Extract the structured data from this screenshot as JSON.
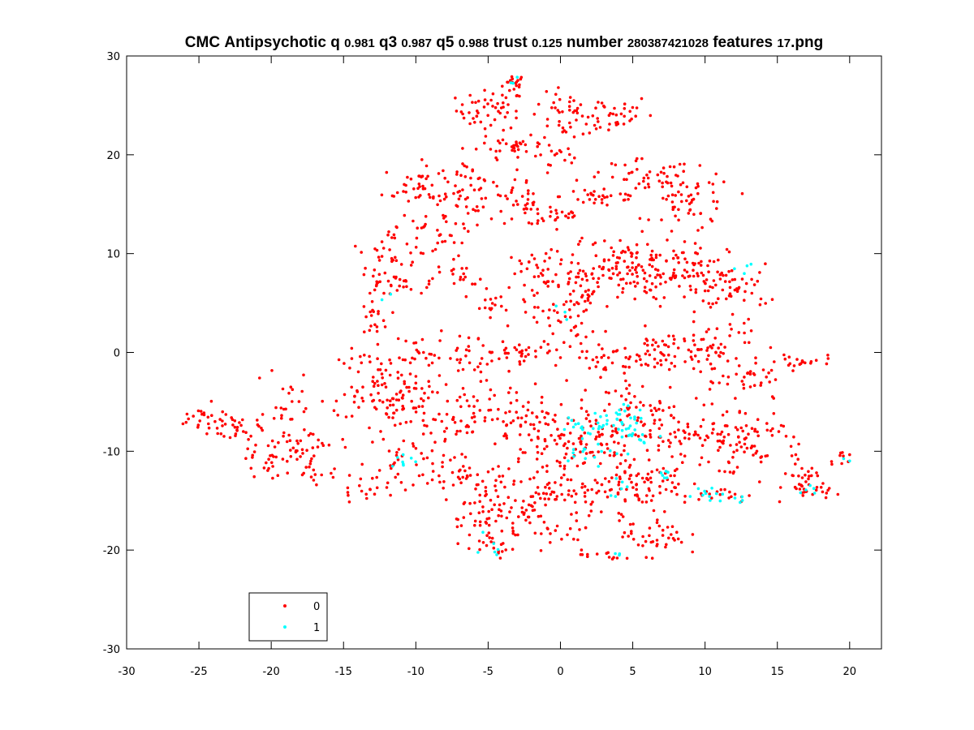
{
  "chart_data": {
    "type": "scatter",
    "title_parts": [
      {
        "text": "CMC Antipsychotic q ",
        "small": false
      },
      {
        "text": "0.981",
        "small": true
      },
      {
        "text": " q3 ",
        "small": false
      },
      {
        "text": "0.987",
        "small": true
      },
      {
        "text": " q5 ",
        "small": false
      },
      {
        "text": "0.988",
        "small": true
      },
      {
        "text": " trust ",
        "small": false
      },
      {
        "text": "0.125",
        "small": true
      },
      {
        "text": " number ",
        "small": false
      },
      {
        "text": "280387421028",
        "small": true
      },
      {
        "text": " features ",
        "small": false
      },
      {
        "text": "17",
        "small": true
      },
      {
        "text": ".png",
        "small": false
      }
    ],
    "xlim": [
      -30,
      22.2
    ],
    "ylim": [
      -30,
      30
    ],
    "x_ticks": [
      -30,
      -25,
      -20,
      -15,
      -10,
      -5,
      0,
      5,
      10,
      15,
      20
    ],
    "y_ticks": [
      -30,
      -20,
      -10,
      0,
      10,
      20,
      30
    ],
    "x_tick_labels": [
      "-30",
      "-25",
      "-20",
      "-15",
      "-10",
      "-5",
      "0",
      "5",
      "10",
      "15",
      "20"
    ],
    "y_tick_labels": [
      "-30",
      "-20",
      "-10",
      "0",
      "10",
      "20",
      "30"
    ],
    "grid": false,
    "legend_position": "bottom-left",
    "series": [
      {
        "name": "0",
        "color": "#ff0000",
        "clusters": [
          {
            "cx": -3.2,
            "cy": 27.2,
            "sx": 0.4,
            "sy": 0.5,
            "n": 18
          },
          {
            "cx": -4.8,
            "cy": 24.5,
            "sx": 1.2,
            "sy": 1.0,
            "n": 50
          },
          {
            "cx": 0.8,
            "cy": 23.8,
            "sx": 1.5,
            "sy": 1.2,
            "n": 45
          },
          {
            "cx": 3.2,
            "cy": 24.2,
            "sx": 1.6,
            "sy": 1.0,
            "n": 30
          },
          {
            "cx": -3.0,
            "cy": 21.0,
            "sx": 1.3,
            "sy": 0.5,
            "n": 30
          },
          {
            "cx": -0.5,
            "cy": 19.5,
            "sx": 1.8,
            "sy": 1.0,
            "n": 25
          },
          {
            "cx": -9.5,
            "cy": 16.8,
            "sx": 1.4,
            "sy": 1.2,
            "n": 45
          },
          {
            "cx": -5.8,
            "cy": 16.2,
            "sx": 1.5,
            "sy": 1.5,
            "n": 55
          },
          {
            "cx": -2.5,
            "cy": 14.5,
            "sx": 1.0,
            "sy": 0.8,
            "n": 30
          },
          {
            "cx": 0.0,
            "cy": 13.8,
            "sx": 0.8,
            "sy": 0.4,
            "n": 18
          },
          {
            "cx": 3.0,
            "cy": 15.8,
            "sx": 1.5,
            "sy": 0.6,
            "n": 30
          },
          {
            "cx": 6.0,
            "cy": 17.5,
            "sx": 1.6,
            "sy": 1.0,
            "n": 40
          },
          {
            "cx": 9.2,
            "cy": 15.0,
            "sx": 1.4,
            "sy": 1.6,
            "n": 55
          },
          {
            "cx": -11.5,
            "cy": 11.0,
            "sx": 1.2,
            "sy": 1.2,
            "n": 30
          },
          {
            "cx": -8.5,
            "cy": 11.8,
            "sx": 1.3,
            "sy": 1.3,
            "n": 30
          },
          {
            "cx": -12.0,
            "cy": 7.0,
            "sx": 1.0,
            "sy": 0.6,
            "n": 30
          },
          {
            "cx": -13.0,
            "cy": 3.5,
            "sx": 0.6,
            "sy": 1.2,
            "n": 20
          },
          {
            "cx": -7.0,
            "cy": 7.2,
            "sx": 1.0,
            "sy": 0.8,
            "n": 18
          },
          {
            "cx": -4.5,
            "cy": 4.5,
            "sx": 1.2,
            "sy": 1.0,
            "n": 18
          },
          {
            "cx": -1.5,
            "cy": 8.0,
            "sx": 1.2,
            "sy": 1.5,
            "n": 30
          },
          {
            "cx": 1.5,
            "cy": 7.5,
            "sx": 1.6,
            "sy": 2.0,
            "n": 70
          },
          {
            "cx": 4.5,
            "cy": 8.5,
            "sx": 1.8,
            "sy": 1.6,
            "n": 90
          },
          {
            "cx": 7.5,
            "cy": 8.0,
            "sx": 1.3,
            "sy": 1.5,
            "n": 50
          },
          {
            "cx": 10.5,
            "cy": 7.5,
            "sx": 1.2,
            "sy": 1.6,
            "n": 45
          },
          {
            "cx": 12.5,
            "cy": 6.5,
            "sx": 1.0,
            "sy": 1.2,
            "n": 30
          },
          {
            "cx": 0.5,
            "cy": 3.0,
            "sx": 1.2,
            "sy": 1.3,
            "n": 30
          },
          {
            "cx": -3.0,
            "cy": 0.0,
            "sx": 1.4,
            "sy": 0.5,
            "n": 30
          },
          {
            "cx": -6.0,
            "cy": -0.5,
            "sx": 1.4,
            "sy": 1.2,
            "n": 35
          },
          {
            "cx": -9.5,
            "cy": -0.5,
            "sx": 1.0,
            "sy": 1.2,
            "n": 25
          },
          {
            "cx": -12.5,
            "cy": -2.5,
            "sx": 1.4,
            "sy": 1.4,
            "n": 45
          },
          {
            "cx": -10.5,
            "cy": -4.5,
            "sx": 1.2,
            "sy": 1.0,
            "n": 30
          },
          {
            "cx": 3.5,
            "cy": -1.0,
            "sx": 1.6,
            "sy": 1.3,
            "n": 45
          },
          {
            "cx": 7.5,
            "cy": 0.0,
            "sx": 1.5,
            "sy": 1.2,
            "n": 55
          },
          {
            "cx": 11.0,
            "cy": 0.5,
            "sx": 1.5,
            "sy": 1.5,
            "n": 45
          },
          {
            "cx": 13.5,
            "cy": -3.0,
            "sx": 1.2,
            "sy": 1.2,
            "n": 30
          },
          {
            "cx": 16.5,
            "cy": -1.0,
            "sx": 1.2,
            "sy": 0.4,
            "n": 20
          },
          {
            "cx": -24.5,
            "cy": -7.0,
            "sx": 1.2,
            "sy": 0.8,
            "n": 25
          },
          {
            "cx": -22.5,
            "cy": -7.5,
            "sx": 0.8,
            "sy": 0.8,
            "n": 25
          },
          {
            "cx": -20.0,
            "cy": -10.5,
            "sx": 1.3,
            "sy": 1.0,
            "n": 40
          },
          {
            "cx": -19.0,
            "cy": -4.5,
            "sx": 0.6,
            "sy": 1.5,
            "n": 18
          },
          {
            "cx": -17.5,
            "cy": -8.5,
            "sx": 1.0,
            "sy": 1.8,
            "n": 30
          },
          {
            "cx": -17.0,
            "cy": -12.5,
            "sx": 1.0,
            "sy": 0.6,
            "n": 12
          },
          {
            "cx": -12.0,
            "cy": -6.5,
            "sx": 1.2,
            "sy": 1.5,
            "n": 30
          },
          {
            "cx": -8.0,
            "cy": -7.0,
            "sx": 1.5,
            "sy": 1.2,
            "n": 35
          },
          {
            "cx": -11.0,
            "cy": -12.0,
            "sx": 1.5,
            "sy": 1.5,
            "n": 40
          },
          {
            "cx": -7.5,
            "cy": -12.0,
            "sx": 1.2,
            "sy": 1.0,
            "n": 20
          },
          {
            "cx": -3.5,
            "cy": -6.0,
            "sx": 1.8,
            "sy": 1.5,
            "n": 60
          },
          {
            "cx": -0.5,
            "cy": -9.5,
            "sx": 1.3,
            "sy": 2.0,
            "n": 50
          },
          {
            "cx": 2.5,
            "cy": -9.0,
            "sx": 2.0,
            "sy": 2.0,
            "n": 80
          },
          {
            "cx": 5.5,
            "cy": -6.0,
            "sx": 1.5,
            "sy": 1.5,
            "n": 45
          },
          {
            "cx": 8.5,
            "cy": -8.0,
            "sx": 1.8,
            "sy": 1.8,
            "n": 60
          },
          {
            "cx": 11.5,
            "cy": -9.0,
            "sx": 1.5,
            "sy": 2.0,
            "n": 50
          },
          {
            "cx": 13.5,
            "cy": -8.5,
            "sx": 1.0,
            "sy": 1.5,
            "n": 30
          },
          {
            "cx": 16.0,
            "cy": -11.5,
            "sx": 0.8,
            "sy": 1.2,
            "n": 15
          },
          {
            "cx": 17.5,
            "cy": -13.5,
            "sx": 0.8,
            "sy": 0.8,
            "n": 35
          },
          {
            "cx": 19.5,
            "cy": -10.5,
            "sx": 0.4,
            "sy": 0.5,
            "n": 8
          },
          {
            "cx": 11.0,
            "cy": -14.5,
            "sx": 1.2,
            "sy": 0.4,
            "n": 20
          },
          {
            "cx": -5.5,
            "cy": -15.5,
            "sx": 1.6,
            "sy": 1.8,
            "n": 70
          },
          {
            "cx": -2.0,
            "cy": -14.5,
            "sx": 1.5,
            "sy": 1.5,
            "n": 45
          },
          {
            "cx": 1.5,
            "cy": -14.5,
            "sx": 1.5,
            "sy": 1.5,
            "n": 40
          },
          {
            "cx": 4.5,
            "cy": -13.5,
            "sx": 1.4,
            "sy": 1.2,
            "n": 40
          },
          {
            "cx": 7.0,
            "cy": -13.0,
            "sx": 1.3,
            "sy": 1.0,
            "n": 25
          },
          {
            "cx": -5.0,
            "cy": -19.0,
            "sx": 1.2,
            "sy": 1.0,
            "n": 25
          },
          {
            "cx": -0.5,
            "cy": -19.0,
            "sx": 1.5,
            "sy": 1.0,
            "n": 20
          },
          {
            "cx": 3.5,
            "cy": -20.5,
            "sx": 1.2,
            "sy": 0.4,
            "n": 12
          },
          {
            "cx": 6.5,
            "cy": -18.5,
            "sx": 1.1,
            "sy": 1.0,
            "n": 40
          },
          {
            "cx": -13.5,
            "cy": -14.0,
            "sx": 0.8,
            "sy": 1.0,
            "n": 12
          },
          {
            "cx": -14.0,
            "cy": -4.0,
            "sx": 0.7,
            "sy": 1.2,
            "n": 12
          }
        ]
      },
      {
        "name": "1",
        "color": "#00ffff",
        "clusters": [
          {
            "cx": 4.5,
            "cy": -7.0,
            "sx": 0.7,
            "sy": 0.8,
            "n": 30
          },
          {
            "cx": 1.8,
            "cy": -7.5,
            "sx": 0.9,
            "sy": 0.6,
            "n": 20
          },
          {
            "cx": 2.5,
            "cy": -10.0,
            "sx": 1.3,
            "sy": 0.5,
            "n": 15
          },
          {
            "cx": 5.5,
            "cy": -8.5,
            "sx": 0.8,
            "sy": 0.5,
            "n": 8
          },
          {
            "cx": 10.5,
            "cy": -14.5,
            "sx": 0.8,
            "sy": 0.4,
            "n": 12
          },
          {
            "cx": 7.5,
            "cy": -12.0,
            "sx": 0.4,
            "sy": 0.5,
            "n": 6
          },
          {
            "cx": -10.5,
            "cy": -11.0,
            "sx": 0.7,
            "sy": 0.3,
            "n": 8
          },
          {
            "cx": 4.0,
            "cy": -13.5,
            "sx": 0.5,
            "sy": 0.6,
            "n": 6
          },
          {
            "cx": -5.0,
            "cy": -19.5,
            "sx": 0.8,
            "sy": 0.8,
            "n": 6
          },
          {
            "cx": 0.3,
            "cy": 4.0,
            "sx": 0.3,
            "sy": 0.5,
            "n": 3
          },
          {
            "cx": -3.2,
            "cy": 27.3,
            "sx": 0.2,
            "sy": 0.3,
            "n": 3
          },
          {
            "cx": 17.5,
            "cy": -14.0,
            "sx": 0.5,
            "sy": 0.4,
            "n": 5
          },
          {
            "cx": 12.5,
            "cy": 8.5,
            "sx": 0.5,
            "sy": 0.8,
            "n": 4
          },
          {
            "cx": 3.8,
            "cy": -20.5,
            "sx": 0.4,
            "sy": 0.3,
            "n": 3
          },
          {
            "cx": 12.5,
            "cy": -15.0,
            "sx": 0.3,
            "sy": 0.2,
            "n": 3
          },
          {
            "cx": -12.0,
            "cy": 5.5,
            "sx": 0.3,
            "sy": 0.3,
            "n": 2
          },
          {
            "cx": 19.8,
            "cy": -10.8,
            "sx": 0.2,
            "sy": 0.2,
            "n": 2
          }
        ]
      }
    ]
  }
}
